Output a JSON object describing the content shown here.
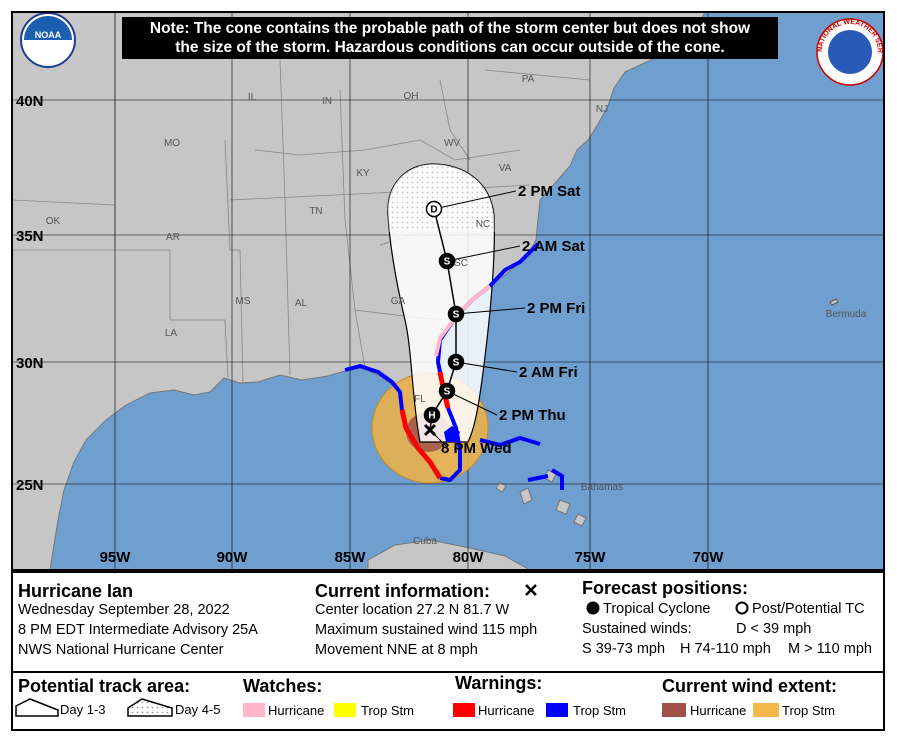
{
  "note": [
    "Note: The cone contains the probable path of the storm center but does not show",
    "the size of the storm. Hazardous conditions can occur outside of the cone."
  ],
  "logos": {
    "noaa": "NOAA",
    "nws": "NATIONAL WEATHER SERVICE"
  },
  "map": {
    "lat_labels": [
      "40N",
      "35N",
      "30N",
      "25N"
    ],
    "lon_labels": [
      "95W",
      "90W",
      "85W",
      "80W",
      "75W",
      "70W"
    ],
    "place_labels": [
      "PA",
      "NJ",
      "IL",
      "IN",
      "OH",
      "MO",
      "KY",
      "WV",
      "VA",
      "OK",
      "TN",
      "NC",
      "AR",
      "SC",
      "MS",
      "AL",
      "GA",
      "LA",
      "FL",
      "Bermuda",
      "Bahamas",
      "Cuba"
    ],
    "forecast_points": [
      {
        "symbol": "D",
        "label": "2 PM Sat"
      },
      {
        "symbol": "S",
        "label": "2 AM Sat"
      },
      {
        "symbol": "S",
        "label": "2 PM Fri"
      },
      {
        "symbol": "S",
        "label": "2 AM Fri"
      },
      {
        "symbol": "S",
        "label": "2 PM Thu"
      },
      {
        "symbol": "H"
      }
    ],
    "current_position_label": "8 PM Wed"
  },
  "storm": {
    "name": "Hurricane Ian",
    "date": "Wednesday September 28, 2022",
    "advisory": "8 PM EDT Intermediate Advisory 25A",
    "center": "NWS National Hurricane Center"
  },
  "current_information": {
    "title": "Current information:",
    "lines": [
      "Center location 27.2 N 81.7 W",
      "Maximum sustained wind 115 mph",
      "Movement NNE at 8 mph"
    ]
  },
  "forecast_positions": {
    "title": "Forecast positions:",
    "tropical_cyclone": "Tropical Cyclone",
    "post_potential": "Post/Potential TC",
    "sustained_winds": "Sustained winds:",
    "d": "D < 39 mph",
    "s": "S 39-73 mph",
    "h": "H 74-110 mph",
    "m": "M > 110 mph"
  },
  "legend": {
    "track_title": "Potential track area:",
    "day13": "Day 1-3",
    "day45": "Day 4-5",
    "watches_title": "Watches:",
    "watch_hurricane": "Hurricane",
    "watch_trop": "Trop Stm",
    "warnings_title": "Warnings:",
    "warn_hurricane": "Hurricane",
    "warn_trop": "Trop Stm",
    "wind_title": "Current wind extent:",
    "wind_hurricane": "Hurricane",
    "wind_trop": "Trop Stm"
  }
}
